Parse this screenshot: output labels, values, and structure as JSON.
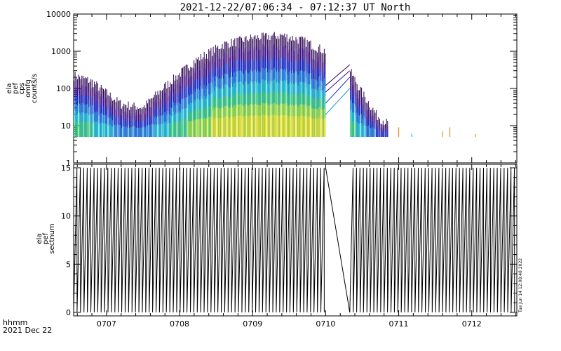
{
  "title": "2021-12-22/07:06:34 - 07:12:37 UT     North",
  "timestamp_vertical": "Tue Jun 14 12:08:48 2022",
  "footer": {
    "line1": "hhmm",
    "line2": "2021 Dec 22"
  },
  "chart_data": [
    {
      "type": "line",
      "panel": "top",
      "ylabel_lines": [
        "ela",
        "pef",
        "cps",
        "omfg",
        "counts/s"
      ],
      "yscale": "log",
      "ylim": [
        1,
        10000
      ],
      "ytick_labels": [
        "1",
        "10",
        "100",
        "1000",
        "10000"
      ],
      "ytick_values": [
        1,
        10,
        100,
        1000,
        10000
      ],
      "xlim_min": [
        6.55,
        12.617
      ],
      "xtick_labels": [
        "0707",
        "0708",
        "0709",
        "0710",
        "0711",
        "0712"
      ],
      "xtick_values_min": [
        7,
        8,
        9,
        10,
        11,
        12
      ],
      "data_floor": 5,
      "gap_min": [
        10.0,
        10.33
      ],
      "envelope": [
        {
          "t": 6.55,
          "v": 300
        },
        {
          "t": 6.8,
          "v": 200
        },
        {
          "t": 7.2,
          "v": 50
        },
        {
          "t": 7.5,
          "v": 40
        },
        {
          "t": 7.8,
          "v": 150
        },
        {
          "t": 8.2,
          "v": 700
        },
        {
          "t": 8.6,
          "v": 2000
        },
        {
          "t": 9.0,
          "v": 3000
        },
        {
          "t": 9.4,
          "v": 3500
        },
        {
          "t": 9.7,
          "v": 2500
        },
        {
          "t": 10.0,
          "v": 1300
        },
        {
          "t": 10.33,
          "v": 400
        },
        {
          "t": 10.5,
          "v": 100
        },
        {
          "t": 10.7,
          "v": 25
        },
        {
          "t": 10.85,
          "v": 15
        }
      ],
      "series_colors": [
        "#2a0050",
        "#3b0a8a",
        "#1030d0",
        "#1a8fe0",
        "#20d0d0",
        "#40d070",
        "#b0e030",
        "#f0e020"
      ],
      "sparse_points": [
        {
          "t": 11.0,
          "v": 9,
          "color": "#e08a20"
        },
        {
          "t": 11.18,
          "v": 6,
          "color": "#20a0ff"
        },
        {
          "t": 11.6,
          "v": 7,
          "color": "#e08a20"
        },
        {
          "t": 11.7,
          "v": 9,
          "color": "#e08a20"
        },
        {
          "t": 12.05,
          "v": 6,
          "color": "#e08a20"
        }
      ]
    },
    {
      "type": "line",
      "panel": "bottom",
      "ylabel_lines": [
        "ela",
        "pef",
        "sectnum"
      ],
      "ylim": [
        0,
        15
      ],
      "ytick_labels": [
        "0",
        "5",
        "10",
        "15"
      ],
      "ytick_values": [
        0,
        5,
        10,
        15
      ],
      "xlim_min": [
        6.55,
        12.617
      ],
      "xtick_labels": [
        "0707",
        "0708",
        "0709",
        "0710",
        "0711",
        "0712"
      ],
      "xtick_values_min": [
        7,
        8,
        9,
        10,
        11,
        12
      ],
      "sector_max": 15,
      "sawtooth_period_min": 0.047,
      "gap_min": [
        10.0,
        10.33
      ]
    }
  ]
}
